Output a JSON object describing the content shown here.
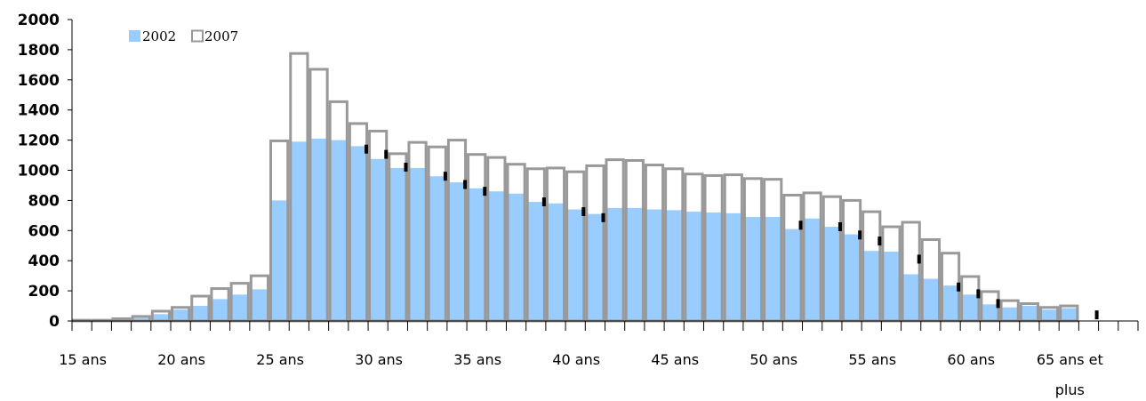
{
  "chart_data": {
    "type": "bar",
    "title": "",
    "xlabel": "",
    "ylabel": "",
    "ylim": [
      0,
      2000
    ],
    "yticks": [
      "0",
      "200",
      "400",
      "600",
      "800",
      "1000",
      "1200",
      "1400",
      "1600",
      "1800",
      "2000"
    ],
    "x_tick_labels": [
      {
        "line1": "15 ans",
        "line2": "",
        "index": 0
      },
      {
        "line1": "20 ans",
        "line2": "",
        "index": 5
      },
      {
        "line1": "25 ans",
        "line2": "",
        "index": 10
      },
      {
        "line1": "30 ans",
        "line2": "",
        "index": 15
      },
      {
        "line1": "35 ans",
        "line2": "",
        "index": 20
      },
      {
        "line1": "40 ans",
        "line2": "",
        "index": 25
      },
      {
        "line1": "45 ans",
        "line2": "",
        "index": 30
      },
      {
        "line1": "50 ans",
        "line2": "",
        "index": 35
      },
      {
        "line1": "55 ans",
        "line2": "",
        "index": 40
      },
      {
        "line1": "60 ans",
        "line2": "",
        "index": 45
      },
      {
        "line1": "65 ans et",
        "line2": "plus",
        "index": 50
      }
    ],
    "legend": {
      "placement": "top-left"
    },
    "series": [
      {
        "name": "2002",
        "color": "#99ccff",
        "style": "filled",
        "values": [
          0,
          0,
          5,
          20,
          45,
          75,
          100,
          145,
          175,
          210,
          800,
          1190,
          1210,
          1200,
          1160,
          1075,
          1015,
          1015,
          960,
          920,
          880,
          860,
          845,
          790,
          780,
          740,
          710,
          750,
          750,
          740,
          735,
          725,
          720,
          715,
          690,
          690,
          610,
          680,
          625,
          575,
          465,
          460,
          310,
          280,
          235,
          175,
          110,
          90,
          100,
          75,
          85,
          0,
          0,
          0
        ]
      },
      {
        "name": "2007",
        "color": "#999999",
        "style": "outline",
        "values": [
          5,
          5,
          15,
          30,
          65,
          90,
          165,
          215,
          250,
          300,
          1195,
          1775,
          1670,
          1455,
          1310,
          1260,
          1110,
          1185,
          1155,
          1200,
          1105,
          1085,
          1040,
          1010,
          1015,
          990,
          1030,
          1070,
          1065,
          1035,
          1010,
          975,
          965,
          970,
          945,
          940,
          835,
          850,
          825,
          800,
          725,
          625,
          655,
          540,
          450,
          295,
          195,
          135,
          115,
          90,
          100,
          0,
          0,
          0
        ]
      }
    ],
    "markers": {
      "color": "#000000",
      "values": [
        0,
        0,
        0,
        0,
        0,
        0,
        0,
        0,
        0,
        0,
        0,
        0,
        0,
        0,
        1170,
        1135,
        1050,
        0,
        990,
        935,
        890,
        0,
        0,
        820,
        0,
        755,
        715,
        0,
        0,
        0,
        0,
        0,
        0,
        0,
        0,
        0,
        665,
        0,
        655,
        600,
        560,
        0,
        440,
        0,
        255,
        210,
        145,
        0,
        0,
        0,
        0,
        70,
        0,
        0
      ]
    }
  }
}
